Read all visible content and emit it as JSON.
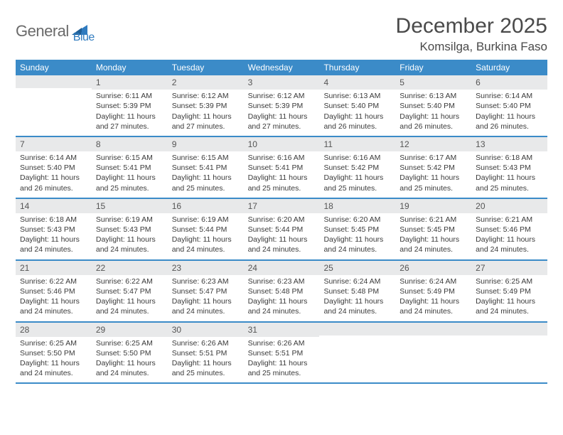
{
  "logo": {
    "text1": "General",
    "text2": "Blue"
  },
  "title": "December 2025",
  "location": "Komsilga, Burkina Faso",
  "colors": {
    "header_bg": "#3b8bc8",
    "header_text": "#ffffff",
    "daynum_bg": "#e8e9ea",
    "border": "#3b8bc8",
    "text": "#3a3a3a",
    "logo_gray": "#6a6a6a",
    "logo_blue": "#2f7bbf"
  },
  "weekdays": [
    "Sunday",
    "Monday",
    "Tuesday",
    "Wednesday",
    "Thursday",
    "Friday",
    "Saturday"
  ],
  "weeks": [
    [
      {
        "num": "",
        "sunrise": "",
        "sunset": "",
        "daylight": ""
      },
      {
        "num": "1",
        "sunrise": "Sunrise: 6:11 AM",
        "sunset": "Sunset: 5:39 PM",
        "daylight": "Daylight: 11 hours and 27 minutes."
      },
      {
        "num": "2",
        "sunrise": "Sunrise: 6:12 AM",
        "sunset": "Sunset: 5:39 PM",
        "daylight": "Daylight: 11 hours and 27 minutes."
      },
      {
        "num": "3",
        "sunrise": "Sunrise: 6:12 AM",
        "sunset": "Sunset: 5:39 PM",
        "daylight": "Daylight: 11 hours and 27 minutes."
      },
      {
        "num": "4",
        "sunrise": "Sunrise: 6:13 AM",
        "sunset": "Sunset: 5:40 PM",
        "daylight": "Daylight: 11 hours and 26 minutes."
      },
      {
        "num": "5",
        "sunrise": "Sunrise: 6:13 AM",
        "sunset": "Sunset: 5:40 PM",
        "daylight": "Daylight: 11 hours and 26 minutes."
      },
      {
        "num": "6",
        "sunrise": "Sunrise: 6:14 AM",
        "sunset": "Sunset: 5:40 PM",
        "daylight": "Daylight: 11 hours and 26 minutes."
      }
    ],
    [
      {
        "num": "7",
        "sunrise": "Sunrise: 6:14 AM",
        "sunset": "Sunset: 5:40 PM",
        "daylight": "Daylight: 11 hours and 26 minutes."
      },
      {
        "num": "8",
        "sunrise": "Sunrise: 6:15 AM",
        "sunset": "Sunset: 5:41 PM",
        "daylight": "Daylight: 11 hours and 25 minutes."
      },
      {
        "num": "9",
        "sunrise": "Sunrise: 6:15 AM",
        "sunset": "Sunset: 5:41 PM",
        "daylight": "Daylight: 11 hours and 25 minutes."
      },
      {
        "num": "10",
        "sunrise": "Sunrise: 6:16 AM",
        "sunset": "Sunset: 5:41 PM",
        "daylight": "Daylight: 11 hours and 25 minutes."
      },
      {
        "num": "11",
        "sunrise": "Sunrise: 6:16 AM",
        "sunset": "Sunset: 5:42 PM",
        "daylight": "Daylight: 11 hours and 25 minutes."
      },
      {
        "num": "12",
        "sunrise": "Sunrise: 6:17 AM",
        "sunset": "Sunset: 5:42 PM",
        "daylight": "Daylight: 11 hours and 25 minutes."
      },
      {
        "num": "13",
        "sunrise": "Sunrise: 6:18 AM",
        "sunset": "Sunset: 5:43 PM",
        "daylight": "Daylight: 11 hours and 25 minutes."
      }
    ],
    [
      {
        "num": "14",
        "sunrise": "Sunrise: 6:18 AM",
        "sunset": "Sunset: 5:43 PM",
        "daylight": "Daylight: 11 hours and 24 minutes."
      },
      {
        "num": "15",
        "sunrise": "Sunrise: 6:19 AM",
        "sunset": "Sunset: 5:43 PM",
        "daylight": "Daylight: 11 hours and 24 minutes."
      },
      {
        "num": "16",
        "sunrise": "Sunrise: 6:19 AM",
        "sunset": "Sunset: 5:44 PM",
        "daylight": "Daylight: 11 hours and 24 minutes."
      },
      {
        "num": "17",
        "sunrise": "Sunrise: 6:20 AM",
        "sunset": "Sunset: 5:44 PM",
        "daylight": "Daylight: 11 hours and 24 minutes."
      },
      {
        "num": "18",
        "sunrise": "Sunrise: 6:20 AM",
        "sunset": "Sunset: 5:45 PM",
        "daylight": "Daylight: 11 hours and 24 minutes."
      },
      {
        "num": "19",
        "sunrise": "Sunrise: 6:21 AM",
        "sunset": "Sunset: 5:45 PM",
        "daylight": "Daylight: 11 hours and 24 minutes."
      },
      {
        "num": "20",
        "sunrise": "Sunrise: 6:21 AM",
        "sunset": "Sunset: 5:46 PM",
        "daylight": "Daylight: 11 hours and 24 minutes."
      }
    ],
    [
      {
        "num": "21",
        "sunrise": "Sunrise: 6:22 AM",
        "sunset": "Sunset: 5:46 PM",
        "daylight": "Daylight: 11 hours and 24 minutes."
      },
      {
        "num": "22",
        "sunrise": "Sunrise: 6:22 AM",
        "sunset": "Sunset: 5:47 PM",
        "daylight": "Daylight: 11 hours and 24 minutes."
      },
      {
        "num": "23",
        "sunrise": "Sunrise: 6:23 AM",
        "sunset": "Sunset: 5:47 PM",
        "daylight": "Daylight: 11 hours and 24 minutes."
      },
      {
        "num": "24",
        "sunrise": "Sunrise: 6:23 AM",
        "sunset": "Sunset: 5:48 PM",
        "daylight": "Daylight: 11 hours and 24 minutes."
      },
      {
        "num": "25",
        "sunrise": "Sunrise: 6:24 AM",
        "sunset": "Sunset: 5:48 PM",
        "daylight": "Daylight: 11 hours and 24 minutes."
      },
      {
        "num": "26",
        "sunrise": "Sunrise: 6:24 AM",
        "sunset": "Sunset: 5:49 PM",
        "daylight": "Daylight: 11 hours and 24 minutes."
      },
      {
        "num": "27",
        "sunrise": "Sunrise: 6:25 AM",
        "sunset": "Sunset: 5:49 PM",
        "daylight": "Daylight: 11 hours and 24 minutes."
      }
    ],
    [
      {
        "num": "28",
        "sunrise": "Sunrise: 6:25 AM",
        "sunset": "Sunset: 5:50 PM",
        "daylight": "Daylight: 11 hours and 24 minutes."
      },
      {
        "num": "29",
        "sunrise": "Sunrise: 6:25 AM",
        "sunset": "Sunset: 5:50 PM",
        "daylight": "Daylight: 11 hours and 24 minutes."
      },
      {
        "num": "30",
        "sunrise": "Sunrise: 6:26 AM",
        "sunset": "Sunset: 5:51 PM",
        "daylight": "Daylight: 11 hours and 25 minutes."
      },
      {
        "num": "31",
        "sunrise": "Sunrise: 6:26 AM",
        "sunset": "Sunset: 5:51 PM",
        "daylight": "Daylight: 11 hours and 25 minutes."
      },
      {
        "num": "",
        "sunrise": "",
        "sunset": "",
        "daylight": ""
      },
      {
        "num": "",
        "sunrise": "",
        "sunset": "",
        "daylight": ""
      },
      {
        "num": "",
        "sunrise": "",
        "sunset": "",
        "daylight": ""
      }
    ]
  ]
}
